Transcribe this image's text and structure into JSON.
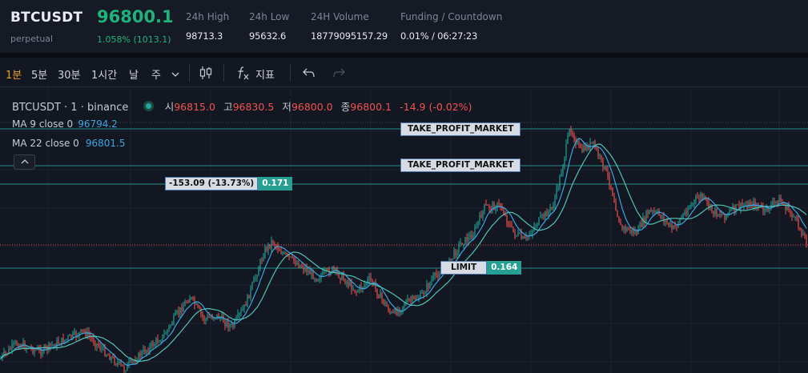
{
  "ticker": {
    "symbol": "BTCUSDT",
    "subtitle": "perpetual",
    "price": "96800.1",
    "change": "1.058% (1013.1)",
    "stats": [
      {
        "label": "24h High",
        "value": "98713.3"
      },
      {
        "label": "24h Low",
        "value": "95632.6"
      },
      {
        "label": "24H Volume",
        "value": "18779095157.29"
      },
      {
        "label": "Funding / Countdown",
        "value": "0.01% / 06:27:23"
      }
    ]
  },
  "toolbar": {
    "intervals": [
      "1분",
      "5분",
      "30분",
      "1시간",
      "날",
      "주"
    ],
    "active_interval": "1분",
    "indicator_label": "지표"
  },
  "chart": {
    "title": "BTCUSDT · 1 · binance",
    "ohlc": {
      "open_key": "시",
      "open": "96815.0",
      "high_key": "고",
      "high": "96830.5",
      "low_key": "저",
      "low": "96800.0",
      "close_key": "종",
      "close": "96800.1",
      "change": "-14.9 (-0.02%)"
    },
    "ma9": {
      "label": "MA 9 close 0",
      "value": "96794.2"
    },
    "ma22": {
      "label": "MA 22 close 0",
      "value": "96801.5"
    },
    "orders": [
      {
        "type": "TAKE_PROFIT_MARKET"
      },
      {
        "type": "TAKE_PROFIT_MARKET"
      },
      {
        "text": "-153.09 (-13.73%)",
        "qty": "0.171"
      },
      {
        "type": "LIMIT",
        "qty": "0.164"
      }
    ],
    "colors": {
      "up": "#26a69a",
      "down": "#ef5350",
      "ma9": "#3aa7e0",
      "ma22": "#4fc3b5",
      "order_line": "#2a8f89",
      "last_price_line": "#ef5350"
    }
  }
}
